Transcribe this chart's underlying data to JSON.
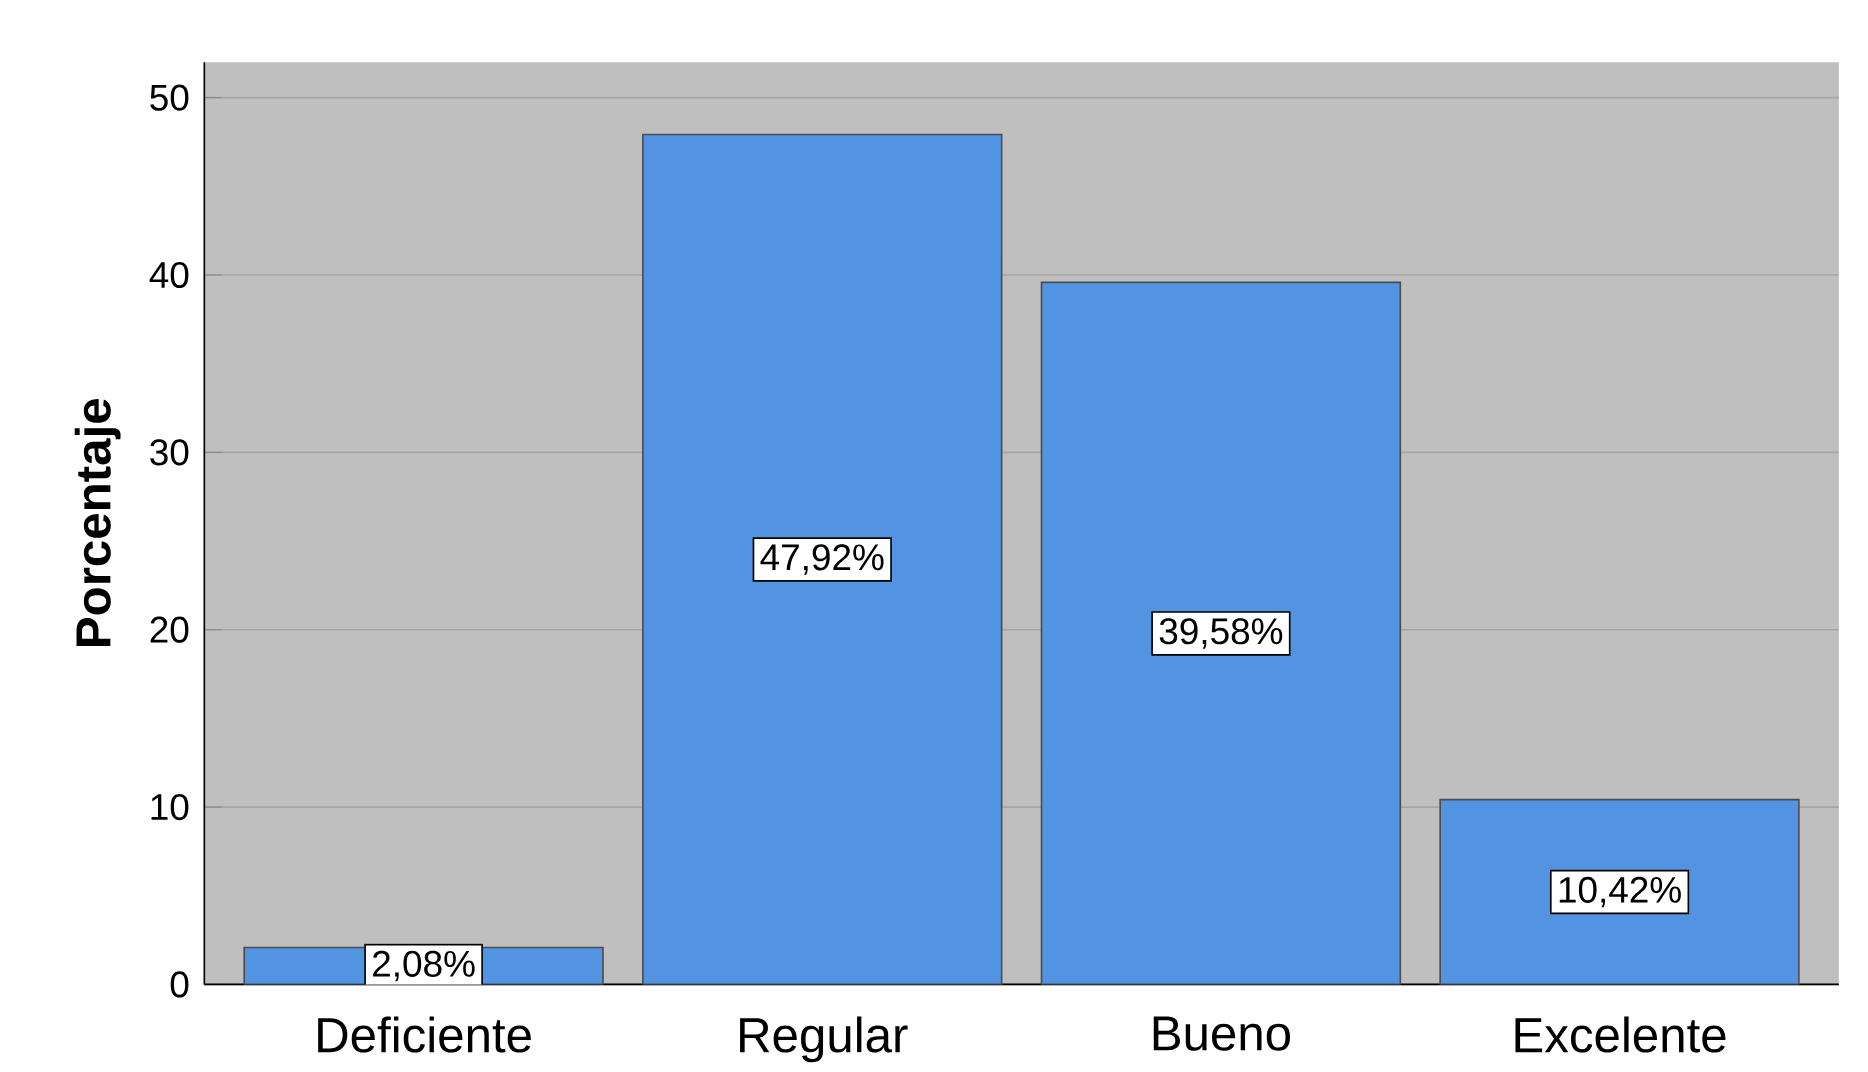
{
  "chart_data": {
    "type": "bar",
    "ylabel": "Porcentaje",
    "categories": [
      "Deficiente",
      "Regular",
      "Bueno",
      "Excelente"
    ],
    "values": [
      2.08,
      47.92,
      39.58,
      10.42
    ],
    "value_labels": [
      "2,08%",
      "47,92%",
      "39,58%",
      "10,42%"
    ],
    "color": "#5294e2",
    "ylim": [
      0,
      52
    ],
    "yticks": [
      0,
      10,
      20,
      30,
      40,
      50
    ],
    "grid": "y"
  }
}
